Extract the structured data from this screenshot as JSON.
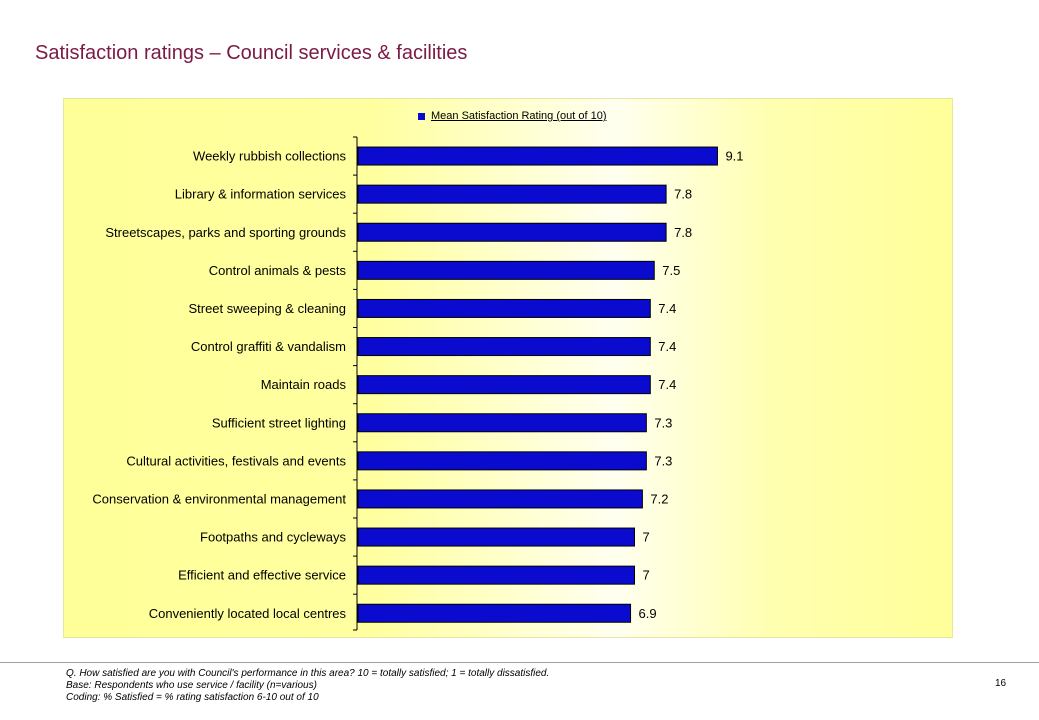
{
  "title": "Satisfaction ratings – Council services & facilities",
  "chart_data": {
    "type": "bar",
    "orientation": "horizontal",
    "legend": {
      "label": "Mean Satisfaction Rating (out of 10)",
      "position": "top"
    },
    "categories": [
      "Weekly rubbish collections",
      "Library & information services",
      "Streetscapes, parks and sporting grounds",
      "Control animals & pests",
      "Street sweeping & cleaning",
      "Control graffiti & vandalism",
      "Maintain roads",
      "Sufficient street lighting",
      "Cultural activities, festivals and events",
      "Conservation & environmental management",
      "Footpaths and cycleways",
      "Efficient and effective service",
      "Conveniently located local centres"
    ],
    "series": [
      {
        "name": "Mean Satisfaction Rating (out of 10)",
        "color": "#0b0bd0",
        "values": [
          9.1,
          7.8,
          7.8,
          7.5,
          7.4,
          7.4,
          7.4,
          7.3,
          7.3,
          7.2,
          7,
          7,
          6.9
        ],
        "labels": [
          "9.1",
          "7.8",
          "7.8",
          "7.5",
          "7.4",
          "7.4",
          "7.4",
          "7.3",
          "7.3",
          "7.2",
          "7",
          "7",
          "6.9"
        ]
      }
    ],
    "xlim": [
      0,
      10
    ],
    "grid": false,
    "background": "#ffff99"
  },
  "footnotes": [
    "Q. How satisfied are you with Council's performance in this area?  10 = totally satisfied; 1 = totally dissatisfied.",
    "Base: Respondents who use service / facility (n=various)",
    "Coding: % Satisfied = % rating satisfaction 6-10 out of 10"
  ],
  "page_number": "16"
}
